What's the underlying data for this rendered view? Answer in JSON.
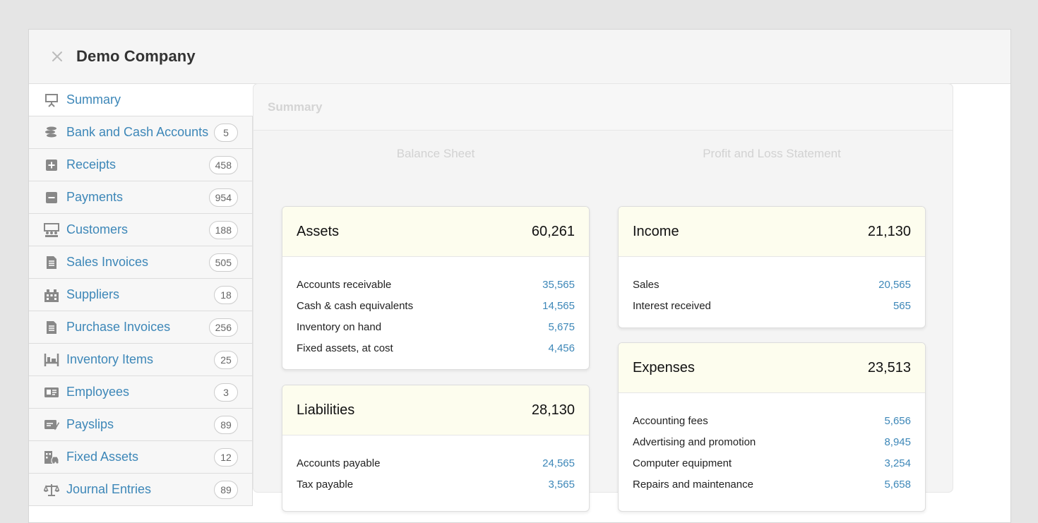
{
  "header": {
    "title": "Demo Company",
    "close_icon": "close-icon"
  },
  "colors": {
    "link": "#3d87b8",
    "card_header_bg": "#fdfdee",
    "page_bg": "#e5e5e5"
  },
  "sidebar": {
    "items": [
      {
        "label": "Summary",
        "icon": "presentation-board-icon",
        "count": null,
        "active": true
      },
      {
        "label": "Bank and Cash Accounts",
        "icon": "coins-stack-icon",
        "count": "5"
      },
      {
        "label": "Receipts",
        "icon": "plus-square-icon",
        "count": "458"
      },
      {
        "label": "Payments",
        "icon": "minus-square-icon",
        "count": "954"
      },
      {
        "label": "Customers",
        "icon": "customers-icon",
        "count": "188"
      },
      {
        "label": "Sales Invoices",
        "icon": "document-icon",
        "count": "505"
      },
      {
        "label": "Suppliers",
        "icon": "building-icon",
        "count": "18"
      },
      {
        "label": "Purchase Invoices",
        "icon": "document-icon",
        "count": "256"
      },
      {
        "label": "Inventory Items",
        "icon": "shelf-icon",
        "count": "25"
      },
      {
        "label": "Employees",
        "icon": "id-card-icon",
        "count": "3"
      },
      {
        "label": "Payslips",
        "icon": "payslip-icon",
        "count": "89"
      },
      {
        "label": "Fixed Assets",
        "icon": "building-car-icon",
        "count": "12"
      },
      {
        "label": "Journal Entries",
        "icon": "scales-icon",
        "count": "89"
      }
    ]
  },
  "summary": {
    "panel_title": "Summary",
    "balance_sheet_heading": "Balance Sheet",
    "pl_heading": "Profit and Loss Statement",
    "assets": {
      "title": "Assets",
      "total": "60,261",
      "rows": [
        {
          "label": "Accounts receivable",
          "value": "35,565"
        },
        {
          "label": "Cash & cash equivalents",
          "value": "14,565"
        },
        {
          "label": "Inventory on hand",
          "value": "5,675"
        },
        {
          "label": "Fixed assets, at cost",
          "value": "4,456"
        }
      ]
    },
    "liabilities": {
      "title": "Liabilities",
      "total": "28,130",
      "rows": [
        {
          "label": "Accounts payable",
          "value": "24,565"
        },
        {
          "label": "Tax payable",
          "value": "3,565"
        }
      ]
    },
    "income": {
      "title": "Income",
      "total": "21,130",
      "rows": [
        {
          "label": "Sales",
          "value": "20,565"
        },
        {
          "label": "Interest received",
          "value": "565"
        }
      ]
    },
    "expenses": {
      "title": "Expenses",
      "total": "23,513",
      "rows": [
        {
          "label": "Accounting fees",
          "value": "5,656"
        },
        {
          "label": "Advertising and promotion",
          "value": "8,945"
        },
        {
          "label": "Computer equipment",
          "value": "3,254"
        },
        {
          "label": "Repairs and maintenance",
          "value": "5,658"
        }
      ]
    }
  }
}
